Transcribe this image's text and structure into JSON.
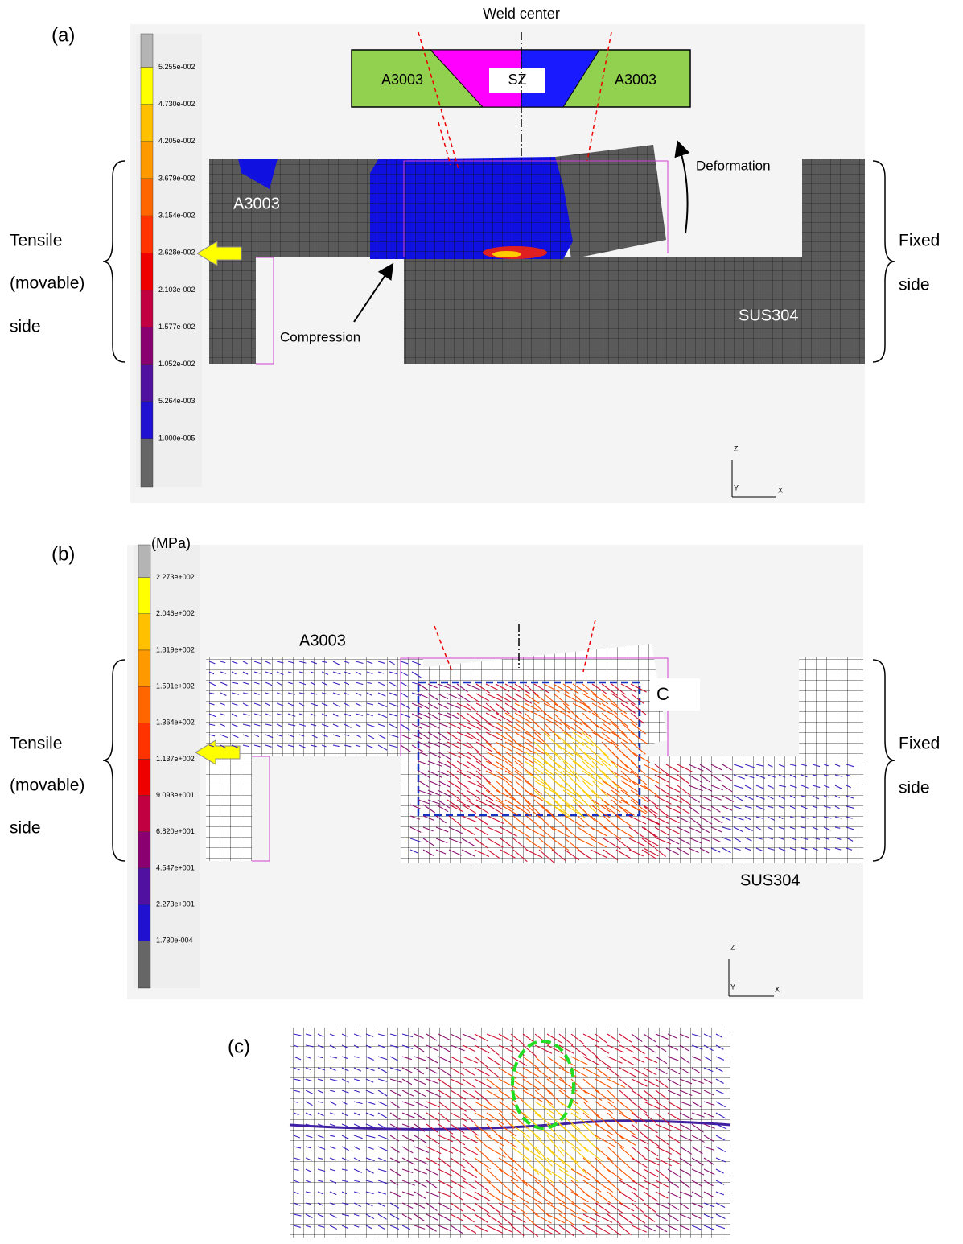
{
  "panels": [
    {
      "label": "(a)",
      "colorbar": {
        "ticks": [
          "5.255e-002",
          "4.730e-002",
          "4.205e-002",
          "3.679e-002",
          "3.154e-002",
          "2.628e-002",
          "2.103e-002",
          "1.577e-002",
          "1.052e-002",
          "5.264e-003",
          "1.000e-005"
        ]
      },
      "annotations": {
        "weld_center": "Weld center",
        "inset_left": "A3003",
        "inset_center": "SZ",
        "inset_right": "A3003",
        "upper_plate": "A3003",
        "deformation": "Deformation",
        "compression": "Compression",
        "lower_plate": "SUS304",
        "left_side": [
          "Tensile",
          "(movable)",
          "side"
        ],
        "right_side": [
          "Fixed",
          "side"
        ],
        "axes": [
          "Z",
          "Y",
          "X"
        ]
      }
    },
    {
      "label": "(b)",
      "colorbar": {
        "unit": "(MPa)",
        "ticks": [
          "2.273e+002",
          "2.046e+002",
          "1.819e+002",
          "1.591e+002",
          "1.364e+002",
          "1.137e+002",
          "9.093e+001",
          "6.820e+001",
          "4.547e+001",
          "2.273e+001",
          "1.730e-004"
        ]
      },
      "annotations": {
        "upper_plate": "A3003",
        "region": "C",
        "lower_plate": "SUS304",
        "left_side": [
          "Tensile",
          "(movable)",
          "side"
        ],
        "right_side": [
          "Fixed",
          "side"
        ],
        "axes": [
          "Z",
          "Y",
          "X"
        ]
      }
    },
    {
      "label": "(c)"
    }
  ]
}
